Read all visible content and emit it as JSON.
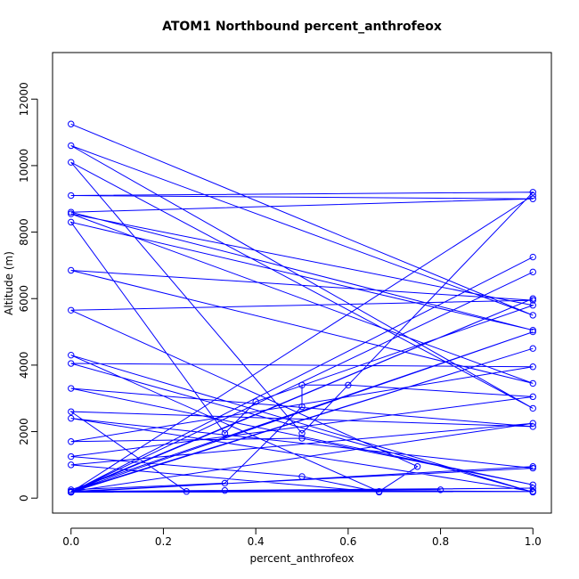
{
  "chart_data": {
    "type": "scatter",
    "title": "ATOM1 Northbound percent_anthrofeox",
    "xlabel": "percent_anthrofeox",
    "ylabel": "Altitude (m)",
    "xlim": [
      -0.04,
      1.04
    ],
    "ylim": [
      -450,
      13400
    ],
    "xticks": [
      "0.0",
      "0.2",
      "0.4",
      "0.6",
      "0.8",
      "1.0"
    ],
    "yticks": [
      "0",
      "2000",
      "4000",
      "6000",
      "8000",
      "10000",
      "12000"
    ],
    "grid": false,
    "series_color": "#0000ff",
    "connected": true,
    "series": [
      {
        "x": [
          0.0,
          1.0,
          0.0,
          1.0,
          0.0,
          0.5,
          1.0,
          0.0,
          1.0,
          0.0,
          1.0,
          0.0,
          0.333,
          0.4,
          1.0,
          0.0,
          1.0,
          0.0,
          1.0,
          0.0,
          0.75,
          0.667,
          0.0,
          1.0,
          0.0,
          1.0,
          0.0,
          0.5,
          1.0,
          0.0,
          1.0,
          0.0,
          0.25,
          0.333,
          1.0,
          0.0,
          1.0,
          0.0,
          1.0,
          0.0,
          0.333,
          0.5,
          0.5,
          0.6,
          1.0,
          0.0,
          0.5,
          0.667,
          0.0,
          1.0,
          0.0,
          1.0,
          0.0,
          1.0,
          0.0,
          0.8,
          0.0,
          1.0,
          0.0,
          1.0,
          0.0,
          1.0,
          0.0,
          1.0,
          0.0,
          1.0,
          0.0,
          1.0
        ],
        "y": [
          11250,
          5500,
          10600,
          2700,
          10100,
          1950,
          9200,
          9100,
          9000,
          8600,
          5050,
          8300,
          1950,
          2900,
          5800,
          8550,
          3450,
          6850,
          5950,
          5650,
          950,
          200,
          4300,
          180,
          4050,
          3950,
          1700,
          1800,
          400,
          3300,
          2150,
          2600,
          200,
          230,
          200,
          2400,
          900,
          200,
          5000,
          250,
          450,
          2750,
          3400,
          3400,
          3050,
          1250,
          650,
          180,
          1000,
          2250,
          200,
          4500,
          180,
          950,
          180,
          250,
          180,
          300,
          200,
          6000,
          180,
          7250,
          180,
          9100,
          180,
          6800,
          180,
          200
        ]
      }
    ]
  }
}
